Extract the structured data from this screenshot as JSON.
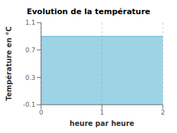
{
  "chart_data": {
    "type": "area",
    "title": "Evolution de la température",
    "xlabel": "heure par heure",
    "ylabel": "Température en °C",
    "x": [
      0,
      2
    ],
    "values": [
      0.9,
      0.9
    ],
    "color": "#5bb8d4",
    "xlim": [
      0,
      2
    ],
    "ylim": [
      -0.1,
      1.1
    ],
    "xticks": [
      0,
      1,
      2
    ],
    "yticks": [
      -0.1,
      0.3,
      0.7,
      1.1
    ],
    "grid": "x"
  }
}
